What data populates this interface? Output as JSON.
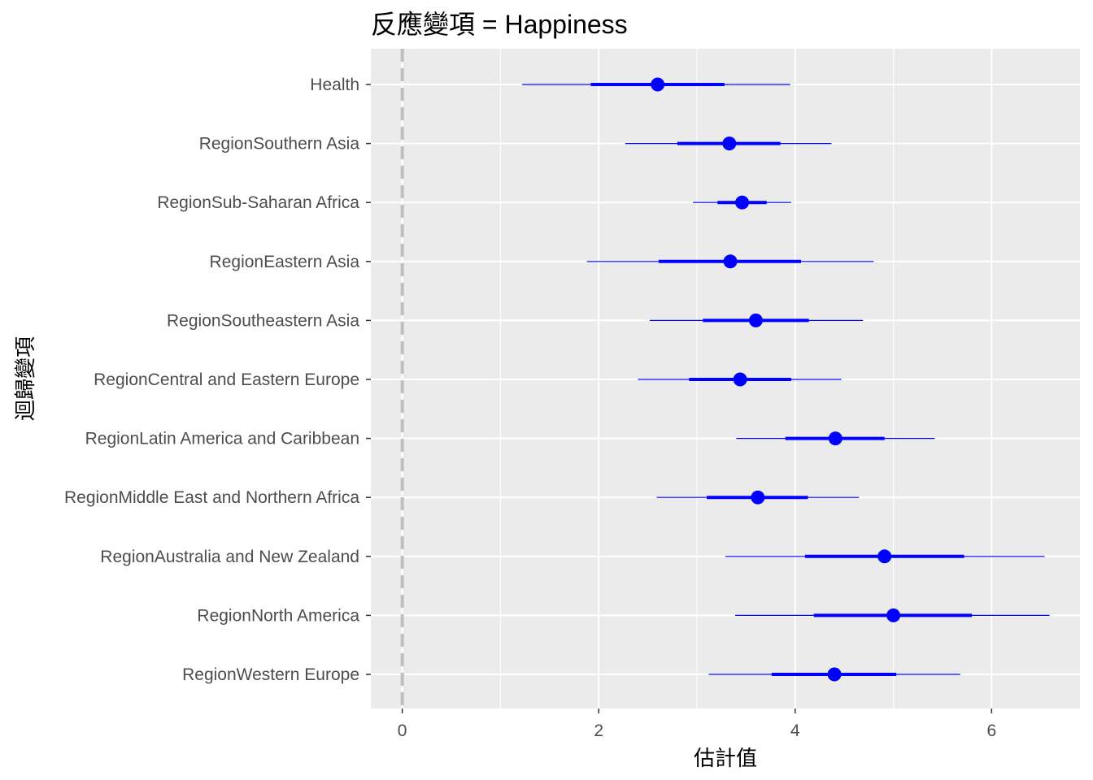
{
  "chart_data": {
    "type": "coefficient-plot",
    "title": "反應變項 = Happiness",
    "xlabel": "估計值",
    "ylabel": "迴歸變項",
    "xlim": [
      -0.32,
      6.9
    ],
    "x_ticks": [
      0,
      2,
      4,
      6
    ],
    "reference_line": 0,
    "grid": true,
    "point_color": "#0000ff",
    "panel_color": "#ebebeb",
    "reference_line_color": "#bebebe",
    "series": [
      {
        "term": "Health",
        "estimate": 2.6,
        "inner_low": 1.92,
        "inner_high": 3.28,
        "outer_low": 1.22,
        "outer_high": 3.95
      },
      {
        "term": "RegionSouthern Asia",
        "estimate": 3.33,
        "inner_low": 2.8,
        "inner_high": 3.85,
        "outer_low": 2.27,
        "outer_high": 4.37
      },
      {
        "term": "RegionSub-Saharan Africa",
        "estimate": 3.46,
        "inner_low": 3.21,
        "inner_high": 3.71,
        "outer_low": 2.96,
        "outer_high": 3.96
      },
      {
        "term": "RegionEastern Asia",
        "estimate": 3.34,
        "inner_low": 2.61,
        "inner_high": 4.06,
        "outer_low": 1.88,
        "outer_high": 4.8
      },
      {
        "term": "RegionSoutheastern Asia",
        "estimate": 3.6,
        "inner_low": 3.06,
        "inner_high": 4.14,
        "outer_low": 2.52,
        "outer_high": 4.69
      },
      {
        "term": "RegionCentral and Eastern Europe",
        "estimate": 3.44,
        "inner_low": 2.92,
        "inner_high": 3.96,
        "outer_low": 2.4,
        "outer_high": 4.47
      },
      {
        "term": "RegionLatin America and Caribbean",
        "estimate": 4.41,
        "inner_low": 3.9,
        "inner_high": 4.91,
        "outer_low": 3.4,
        "outer_high": 5.42
      },
      {
        "term": "RegionMiddle East and Northern Africa",
        "estimate": 3.62,
        "inner_low": 3.1,
        "inner_high": 4.13,
        "outer_low": 2.59,
        "outer_high": 4.65
      },
      {
        "term": "RegionAustralia and New Zealand",
        "estimate": 4.91,
        "inner_low": 4.1,
        "inner_high": 5.72,
        "outer_low": 3.29,
        "outer_high": 6.54
      },
      {
        "term": "RegionNorth America",
        "estimate": 5.0,
        "inner_low": 4.19,
        "inner_high": 5.8,
        "outer_low": 3.39,
        "outer_high": 6.59
      },
      {
        "term": "RegionWestern Europe",
        "estimate": 4.4,
        "inner_low": 3.76,
        "inner_high": 5.03,
        "outer_low": 3.12,
        "outer_high": 5.68
      }
    ]
  }
}
